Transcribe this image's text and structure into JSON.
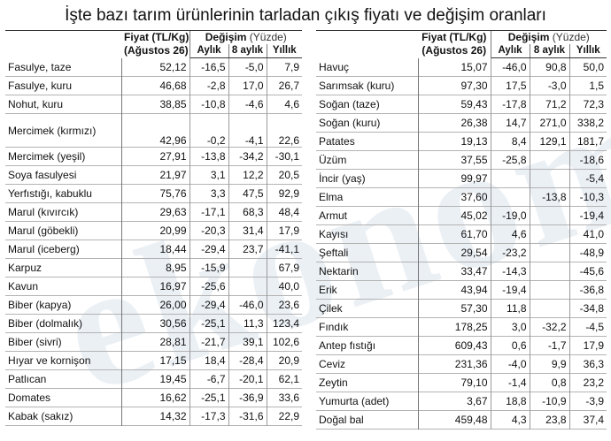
{
  "title": "İşte bazı tarım ürünlerinin tarladan çıkış fiyatı ve değişim oranları",
  "watermark": "ekonomi",
  "headers": {
    "price_line1": "Fiyat (TL/Kg)",
    "price_line2": "(Ağustos 26)",
    "change": "Değişim",
    "change_unit": "(Yüzde)",
    "monthly": "Aylık",
    "eight_months": "8 aylık",
    "yearly": "Yıllık"
  },
  "left_rows": [
    {
      "name": "Fasulye, taze",
      "price": "52,12",
      "monthly": "-16,5",
      "eight": "-5,0",
      "yearly": "7,9"
    },
    {
      "name": "Fasulye, kuru",
      "price": "46,68",
      "monthly": "-2,8",
      "eight": "17,0",
      "yearly": "26,7"
    },
    {
      "name": "Nohut, kuru",
      "price": "38,85",
      "monthly": "-10,8",
      "eight": "-4,6",
      "yearly": "4,6"
    },
    {
      "name": "Mercimek (kırmızı)",
      "price": "42,96",
      "monthly": "-0,2",
      "eight": "-4,1",
      "yearly": "22,6"
    },
    {
      "name": "Mercimek (yeşil)",
      "price": "27,91",
      "monthly": "-13,8",
      "eight": "-34,2",
      "yearly": "-30,1"
    },
    {
      "name": "Soya fasulyesi",
      "price": "21,97",
      "monthly": "3,1",
      "eight": "12,2",
      "yearly": "20,5"
    },
    {
      "name": "Yerfıstığı, kabuklu",
      "price": "75,76",
      "monthly": "3,3",
      "eight": "47,5",
      "yearly": "92,9"
    },
    {
      "name": "Marul (kıvırcık)",
      "price": "29,63",
      "monthly": "-17,1",
      "eight": "68,3",
      "yearly": "48,4"
    },
    {
      "name": "Marul (göbekli)",
      "price": "20,99",
      "monthly": "-20,3",
      "eight": "31,4",
      "yearly": "17,9"
    },
    {
      "name": "Marul (iceberg)",
      "price": "18,44",
      "monthly": "-29,4",
      "eight": "23,7",
      "yearly": "-41,1"
    },
    {
      "name": "Karpuz",
      "price": "8,95",
      "monthly": "-15,9",
      "eight": "",
      "yearly": "67,9"
    },
    {
      "name": "Kavun",
      "price": "16,97",
      "monthly": "-25,6",
      "eight": "",
      "yearly": "40,0"
    },
    {
      "name": "Biber (kapya)",
      "price": "26,00",
      "monthly": "-29,4",
      "eight": "-46,0",
      "yearly": "23,6"
    },
    {
      "name": "Biber (dolmalık)",
      "price": "30,56",
      "monthly": "-25,1",
      "eight": "11,3",
      "yearly": "123,4"
    },
    {
      "name": "Biber (sivri)",
      "price": "28,81",
      "monthly": "-21,7",
      "eight": "39,1",
      "yearly": "102,6"
    },
    {
      "name": "Hıyar ve kornişon",
      "price": "17,15",
      "monthly": "18,4",
      "eight": "-28,4",
      "yearly": "20,9"
    },
    {
      "name": "Patlıcan",
      "price": "19,45",
      "monthly": "-6,7",
      "eight": "-20,1",
      "yearly": "62,1"
    },
    {
      "name": "Domates",
      "price": "16,62",
      "monthly": "-25,1",
      "eight": "-36,9",
      "yearly": "33,6"
    },
    {
      "name": "Kabak (sakız)",
      "price": "14,32",
      "monthly": "-17,3",
      "eight": "-31,6",
      "yearly": "22,9"
    }
  ],
  "right_rows": [
    {
      "name": "Havuç",
      "price": "15,07",
      "monthly": "-46,0",
      "eight": "90,8",
      "yearly": "50,0"
    },
    {
      "name": "Sarımsak (kuru)",
      "price": "97,30",
      "monthly": "17,5",
      "eight": "-3,0",
      "yearly": "1,5"
    },
    {
      "name": "Soğan (taze)",
      "price": "59,43",
      "monthly": "-17,8",
      "eight": "71,2",
      "yearly": "72,3"
    },
    {
      "name": "Soğan (kuru)",
      "price": "26,38",
      "monthly": "14,7",
      "eight": "271,0",
      "yearly": "338,2"
    },
    {
      "name": "Patates",
      "price": "19,13",
      "monthly": "8,4",
      "eight": "129,1",
      "yearly": "181,7"
    },
    {
      "name": "Üzüm",
      "price": "37,55",
      "monthly": "-25,8",
      "eight": "",
      "yearly": "-18,6"
    },
    {
      "name": "İncir (yaş)",
      "price": "99,97",
      "monthly": "",
      "eight": "",
      "yearly": "-5,4"
    },
    {
      "name": "Elma",
      "price": "37,60",
      "monthly": "",
      "eight": "-13,8",
      "yearly": "-10,3"
    },
    {
      "name": "Armut",
      "price": "45,02",
      "monthly": "-19,0",
      "eight": "",
      "yearly": "-19,4"
    },
    {
      "name": "Kayısı",
      "price": "61,70",
      "monthly": "4,6",
      "eight": "",
      "yearly": "41,0"
    },
    {
      "name": "Şeftali",
      "price": "29,54",
      "monthly": "-23,2",
      "eight": "",
      "yearly": "-48,9"
    },
    {
      "name": "Nektarin",
      "price": "33,47",
      "monthly": "-14,3",
      "eight": "",
      "yearly": "-45,6"
    },
    {
      "name": "Erik",
      "price": "43,94",
      "monthly": "-19,4",
      "eight": "",
      "yearly": "-36,8"
    },
    {
      "name": "Çilek",
      "price": "57,30",
      "monthly": "11,8",
      "eight": "",
      "yearly": "-34,8"
    },
    {
      "name": "Fındık",
      "price": "178,25",
      "monthly": "3,0",
      "eight": "-32,2",
      "yearly": "-4,5"
    },
    {
      "name": "Antep fıstığı",
      "price": "609,43",
      "monthly": "0,6",
      "eight": "-1,7",
      "yearly": "17,9"
    },
    {
      "name": "Ceviz",
      "price": "231,36",
      "monthly": "-4,0",
      "eight": "9,9",
      "yearly": "36,3"
    },
    {
      "name": "Zeytin",
      "price": "79,10",
      "monthly": "-1,4",
      "eight": "0,8",
      "yearly": "23,2"
    },
    {
      "name": "Yumurta (adet)",
      "price": "3,67",
      "monthly": "18,8",
      "eight": "-10,9",
      "yearly": "-3,9"
    },
    {
      "name": "Doğal bal",
      "price": "459,48",
      "monthly": "4,3",
      "eight": "23,8",
      "yearly": "37,4"
    }
  ]
}
